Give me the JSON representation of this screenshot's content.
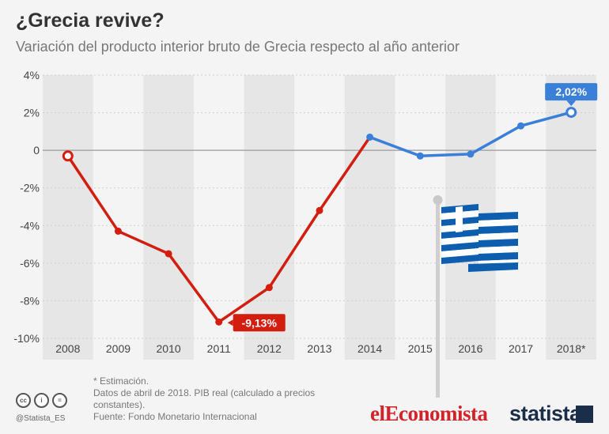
{
  "header": {
    "title": "¿Grecia revive?",
    "subtitle": "Variación del producto interior bruto de Grecia respecto al año anterior"
  },
  "chart_data": {
    "type": "line",
    "title": "¿Grecia revive?",
    "subtitle": "Variación del producto interior bruto de Grecia respecto al año anterior",
    "categories": [
      "2008",
      "2009",
      "2010",
      "2011",
      "2012",
      "2013",
      "2014",
      "2015",
      "2016",
      "2017",
      "2018*"
    ],
    "series": [
      {
        "values": [
          -0.3,
          -4.3,
          -5.5,
          -9.13,
          -7.3,
          -3.2,
          0.7,
          -0.3,
          -0.2,
          1.3,
          2.02
        ],
        "color_segments": [
          {
            "from": 0,
            "to": 6,
            "color": "#d21d0f"
          },
          {
            "from": 6,
            "to": 10,
            "color": "#3a7fd8"
          }
        ]
      }
    ],
    "ylim": [
      -10,
      4
    ],
    "yticks": [
      -10,
      -8,
      -6,
      -4,
      -2,
      0,
      2,
      4
    ],
    "ytick_labels": [
      "-10%",
      "-8%",
      "-6%",
      "-4%",
      "-2%",
      "0",
      "2%",
      "4%"
    ],
    "annotations": [
      {
        "index": 3,
        "label": "-9,13%",
        "color": "#d21d0f"
      },
      {
        "index": 10,
        "label": "2,02%",
        "color": "#3a7fd8"
      }
    ],
    "xlabel": "",
    "ylabel": "",
    "grid": true,
    "colors": {
      "red": "#d21d0f",
      "blue": "#3a7fd8",
      "band": "#e6e6e6"
    }
  },
  "footer": {
    "note": "* Estimación.",
    "data_note": "Datos de abril de 2018. PIB real (calculado a precios constantes).",
    "source": "Fuente: Fondo Monetario Internacional",
    "handle": "@Statista_ES"
  },
  "logos": {
    "eleconomista": "elEconomista",
    "statista": "statista"
  },
  "icons": [
    "cc-icon",
    "by-icon",
    "nd-icon",
    "greek-flag-icon"
  ]
}
